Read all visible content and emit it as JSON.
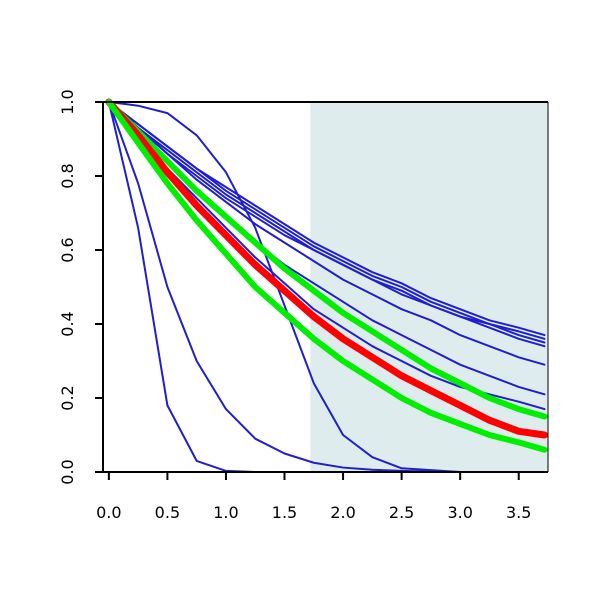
{
  "chart_data": {
    "type": "line",
    "title": "",
    "xlabel": "",
    "ylabel": "",
    "xlim": [
      -0.05,
      3.75
    ],
    "ylim": [
      0.0,
      1.0
    ],
    "grid": false,
    "legend": "none",
    "x_ticks": [
      "0.0",
      "0.5",
      "1.0",
      "1.5",
      "2.0",
      "2.5",
      "3.0",
      "3.5"
    ],
    "y_ticks": [
      "0.0",
      "0.2",
      "0.4",
      "0.6",
      "0.8",
      "1.0"
    ],
    "shaded_region": {
      "x_from": 1.72,
      "x_to": 3.75,
      "color": "#dfeced"
    },
    "colors": {
      "blue": "#1f1fcc",
      "red": "#ff0000",
      "green": "#00ee00",
      "axis": "#000000"
    },
    "x": [
      0,
      0.25,
      0.5,
      0.75,
      1.0,
      1.25,
      1.5,
      1.75,
      2.0,
      2.25,
      2.5,
      2.75,
      3.0,
      3.25,
      3.5,
      3.72
    ],
    "series": [
      {
        "color": "blue",
        "width": 2,
        "values": [
          1.0,
          0.93,
          0.86,
          0.8,
          0.74,
          0.69,
          0.64,
          0.6,
          0.56,
          0.52,
          0.48,
          0.45,
          0.42,
          0.39,
          0.36,
          0.34
        ]
      },
      {
        "color": "blue",
        "width": 2,
        "values": [
          1.0,
          0.93,
          0.87,
          0.81,
          0.75,
          0.7,
          0.65,
          0.6,
          0.56,
          0.52,
          0.49,
          0.45,
          0.42,
          0.4,
          0.37,
          0.35
        ]
      },
      {
        "color": "blue",
        "width": 2,
        "values": [
          1.0,
          0.94,
          0.88,
          0.82,
          0.76,
          0.71,
          0.66,
          0.61,
          0.57,
          0.53,
          0.5,
          0.46,
          0.43,
          0.4,
          0.38,
          0.36
        ]
      },
      {
        "color": "blue",
        "width": 2,
        "values": [
          1.0,
          0.94,
          0.88,
          0.82,
          0.77,
          0.72,
          0.67,
          0.62,
          0.58,
          0.54,
          0.51,
          0.47,
          0.44,
          0.41,
          0.39,
          0.37
        ]
      },
      {
        "color": "blue",
        "width": 2,
        "values": [
          1.0,
          0.93,
          0.86,
          0.79,
          0.73,
          0.67,
          0.62,
          0.57,
          0.52,
          0.48,
          0.44,
          0.41,
          0.37,
          0.34,
          0.31,
          0.29
        ]
      },
      {
        "color": "blue",
        "width": 2,
        "values": [
          1.0,
          0.92,
          0.84,
          0.76,
          0.69,
          0.62,
          0.56,
          0.51,
          0.46,
          0.41,
          0.37,
          0.33,
          0.29,
          0.26,
          0.23,
          0.21
        ]
      },
      {
        "color": "blue",
        "width": 2,
        "values": [
          1.0,
          0.91,
          0.82,
          0.74,
          0.66,
          0.58,
          0.51,
          0.44,
          0.39,
          0.34,
          0.3,
          0.26,
          0.23,
          0.21,
          0.19,
          0.17
        ]
      },
      {
        "color": "blue",
        "width": 2,
        "values": [
          1.0,
          0.99,
          0.97,
          0.91,
          0.81,
          0.66,
          0.45,
          0.24,
          0.1,
          0.04,
          0.01,
          0.005,
          0.0,
          0.0,
          0.0,
          0.0
        ]
      },
      {
        "color": "blue",
        "width": 2,
        "values": [
          1.0,
          0.78,
          0.5,
          0.3,
          0.17,
          0.09,
          0.05,
          0.025,
          0.012,
          0.006,
          0.003,
          0.001,
          0.0,
          0.0,
          0.0,
          0.0
        ]
      },
      {
        "color": "blue",
        "width": 2,
        "values": [
          1.0,
          0.66,
          0.18,
          0.03,
          0.003,
          0.0,
          0.0,
          0.0,
          0.0,
          0.0,
          0.0,
          0.0,
          0.0,
          0.0,
          0.0,
          0.0
        ]
      },
      {
        "color": "green",
        "width": 6,
        "values": [
          1.0,
          0.92,
          0.84,
          0.76,
          0.69,
          0.62,
          0.55,
          0.49,
          0.43,
          0.38,
          0.33,
          0.28,
          0.24,
          0.2,
          0.17,
          0.15
        ]
      },
      {
        "color": "red",
        "width": 7,
        "values": [
          1.0,
          0.91,
          0.81,
          0.72,
          0.64,
          0.56,
          0.49,
          0.42,
          0.36,
          0.31,
          0.26,
          0.22,
          0.18,
          0.14,
          0.11,
          0.1
        ]
      },
      {
        "color": "green",
        "width": 6,
        "values": [
          1.0,
          0.89,
          0.78,
          0.68,
          0.59,
          0.5,
          0.43,
          0.36,
          0.3,
          0.25,
          0.2,
          0.16,
          0.13,
          0.1,
          0.08,
          0.06
        ]
      }
    ]
  }
}
